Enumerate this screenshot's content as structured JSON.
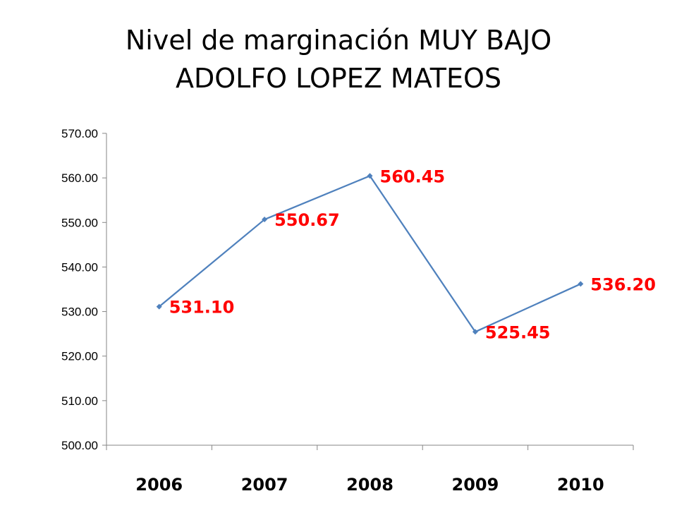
{
  "title": {
    "line1": "Nivel de marginación MUY BAJO",
    "line2": "ADOLFO LOPEZ MATEOS"
  },
  "colors": {
    "line": "#4f81bd",
    "marker": "#4f81bd",
    "data_label": "#ff0000",
    "axis": "#868686"
  },
  "chart_data": {
    "type": "line",
    "title": "Nivel de marginación MUY BAJO ADOLFO LOPEZ MATEOS",
    "categories": [
      "2006",
      "2007",
      "2008",
      "2009",
      "2010"
    ],
    "series": [
      {
        "values": [
          531.1,
          550.67,
          560.45,
          525.45,
          536.2
        ],
        "labels": [
          "531.10",
          "550.67",
          "560.45",
          "525.45",
          "536.20"
        ]
      }
    ],
    "y_ticks": [
      "500.00",
      "510.00",
      "520.00",
      "530.00",
      "540.00",
      "550.00",
      "560.00",
      "570.00"
    ],
    "ylim": [
      500,
      570
    ],
    "xlabel": "",
    "ylabel": "",
    "grid": false,
    "legend": "none"
  }
}
